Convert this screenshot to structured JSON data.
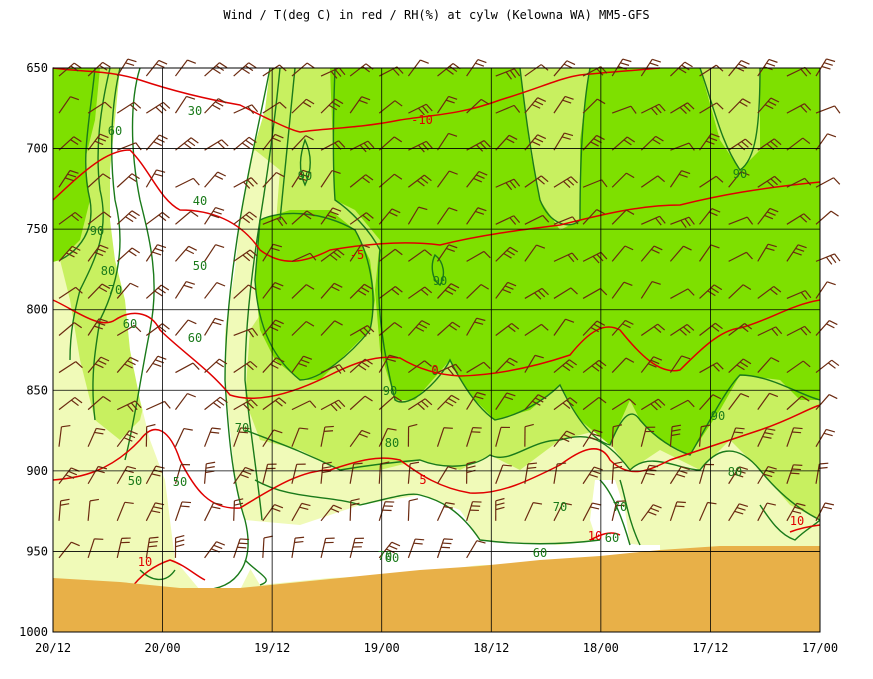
{
  "title": "Wind / T(deg C) in red / RH(%) at cylw (Kelowna WA)  MM5-GFS",
  "colors": {
    "rh_90": "#7ee000",
    "rh_80": "#c8f060",
    "rh_70": "#f0fab8",
    "rh_lt70": "#ffffff",
    "ground": "#e8b048",
    "temp": "#e00000",
    "rh_line": "#1a7a1a",
    "wind": "#6b2a10",
    "grid": "#000000"
  },
  "chart_data": {
    "type": "area",
    "title": "Wind / T(deg C) in red / RH(%) at cylw (Kelowna WA)  MM5-GFS",
    "y_axis": {
      "label": "",
      "range": [
        650,
        1000
      ],
      "inverted": true,
      "ticks": [
        "650",
        "700",
        "750",
        "800",
        "850",
        "900",
        "950",
        "1000"
      ]
    },
    "x_axis": {
      "label": "",
      "ticks": [
        "20/12",
        "20/00",
        "19/12",
        "19/00",
        "18/12",
        "18/00",
        "17/12",
        "17/00"
      ]
    },
    "grid": true,
    "temperature_isotherms_degC": [
      {
        "value": -10,
        "pressure_hPa": [
          652,
          652,
          665,
          700,
          690,
          680,
          672,
          665,
          660,
          656,
          652,
          650
        ]
      },
      {
        "value": -5,
        "pressure_hPa": [
          650,
          655,
          700,
          735,
          755,
          752,
          745,
          740,
          736,
          732,
          728,
          722
        ]
      },
      {
        "value": 0,
        "pressure_hPa": [
          790,
          760,
          790,
          840,
          825,
          800,
          810,
          805,
          795,
          780,
          800,
          780
        ]
      },
      {
        "value": 5,
        "pressure_hPa": [
          890,
          885,
          860,
          900,
          895,
          880,
          910,
          895,
          870,
          900,
          860,
          845
        ]
      },
      {
        "value": 10,
        "pressure_hPa": [
          960,
          955,
          950,
          958,
          0,
          0,
          0,
          0,
          935,
          0,
          0,
          925
        ]
      }
    ],
    "rh_contours_percent": [
      30,
      40,
      50,
      60,
      70,
      80,
      90
    ],
    "rh_labels": [
      {
        "text": "60",
        "pressure": 720
      },
      {
        "text": "30",
        "pressure": 675
      },
      {
        "text": "90",
        "pressure": 705
      },
      {
        "text": "40",
        "pressure": 720
      },
      {
        "text": "90",
        "pressure": 738
      },
      {
        "text": "80",
        "pressure": 756
      },
      {
        "text": "70",
        "pressure": 775
      },
      {
        "text": "50",
        "pressure": 755
      },
      {
        "text": "60",
        "pressure": 792
      },
      {
        "text": "60",
        "pressure": 800
      },
      {
        "text": "90",
        "pressure": 768
      },
      {
        "text": "90",
        "pressure": 829
      },
      {
        "text": "0",
        "pressure": 818
      },
      {
        "text": "70",
        "pressure": 855
      },
      {
        "text": "80",
        "pressure": 865
      },
      {
        "text": "50",
        "pressure": 895
      },
      {
        "text": "50",
        "pressure": 895
      },
      {
        "text": "70",
        "pressure": 922
      },
      {
        "text": "70",
        "pressure": 922
      },
      {
        "text": "60",
        "pressure": 950
      },
      {
        "text": "70",
        "pressure": 942
      },
      {
        "text": "80",
        "pressure": 888
      },
      {
        "text": "90",
        "pressure": 850
      },
      {
        "text": "90",
        "pressure": 700
      },
      {
        "text": "60",
        "pressure": 955
      },
      {
        "text": "60",
        "pressure": 938
      }
    ],
    "isotherm_labels": [
      "-10",
      "-5",
      "0",
      "5",
      "10",
      "10",
      "10"
    ],
    "wind_barbs": "north-east pointing barbs throughout column, brown"
  }
}
